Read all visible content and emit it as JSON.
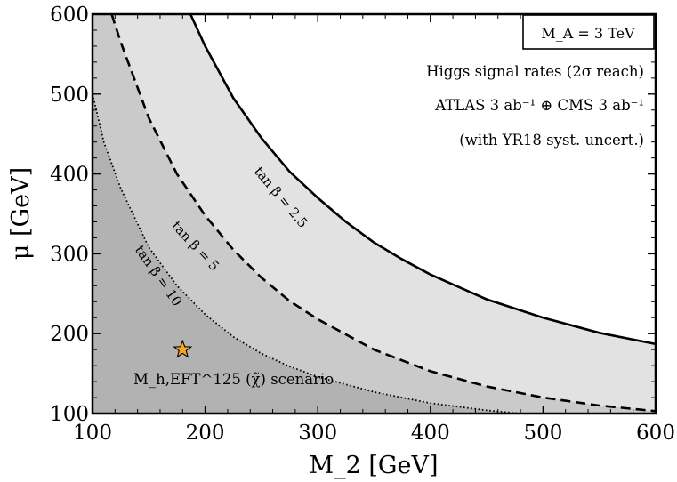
{
  "chart_data": {
    "type": "area",
    "xlabel": "M_2 [GeV]",
    "ylabel": "μ [GeV]",
    "xlim": [
      100,
      600
    ],
    "ylim": [
      100,
      600
    ],
    "xticks": [
      100,
      200,
      300,
      400,
      500,
      600
    ],
    "yticks": [
      100,
      200,
      300,
      400,
      500,
      600
    ],
    "grid": false,
    "box_label": "M_A = 3 TeV",
    "annotation_lines": [
      "Higgs signal rates (2σ reach)",
      "ATLAS 3 ab⁻¹ ⊕ CMS 3 ab⁻¹",
      "(with YR18 syst. uncert.)"
    ],
    "series": [
      {
        "name": "tan β = 2.5",
        "style": "solid",
        "fill_color": "#e2e2e2",
        "x": [
          187,
          200,
          225,
          250,
          275,
          300,
          325,
          350,
          375,
          400,
          450,
          500,
          550,
          600
        ],
        "y": [
          600,
          560,
          495,
          445,
          403,
          370,
          340,
          314,
          293,
          274,
          243,
          220,
          201,
          187
        ]
      },
      {
        "name": "tan β = 5",
        "style": "dashed",
        "fill_color": "#cacaca",
        "x": [
          117,
          125,
          150,
          175,
          200,
          225,
          250,
          275,
          300,
          350,
          400,
          450,
          500,
          550,
          600
        ],
        "y": [
          600,
          565,
          470,
          400,
          348,
          305,
          270,
          241,
          218,
          180,
          153,
          134,
          120,
          110,
          103
        ]
      },
      {
        "name": "tan β = 10",
        "style": "dotted",
        "fill_color": "#b2b2b2",
        "x": [
          100,
          110,
          125,
          150,
          175,
          200,
          225,
          250,
          275,
          300,
          350,
          400,
          450,
          480
        ],
        "y": [
          500,
          440,
          382,
          308,
          260,
          224,
          196,
          175,
          159,
          146,
          127,
          113,
          104,
          100
        ]
      }
    ],
    "marker": {
      "x": 180,
      "y": 180,
      "shape": "star",
      "color": "#f5a623",
      "label": "M_h,EFT^125 (χ̃) scenario"
    }
  }
}
